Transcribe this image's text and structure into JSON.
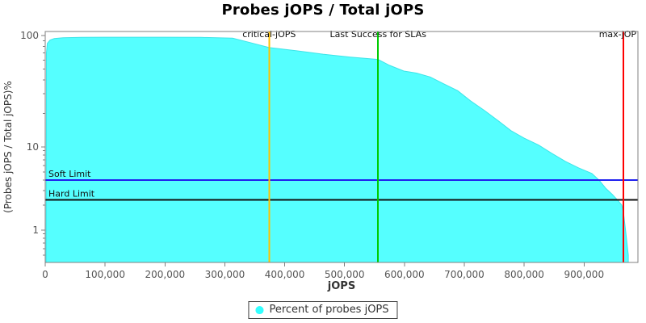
{
  "title": "Probes jOPS / Total jOPS",
  "chart_data": {
    "type": "area",
    "title": "Probes jOPS / Total jOPS",
    "xlabel": "jOPS",
    "ylabel": "(Probes jOPS / Total jOPS)%",
    "x_axis": {
      "min": 0,
      "max": 990000,
      "tick_values": [
        0,
        100000,
        200000,
        300000,
        400000,
        500000,
        600000,
        700000,
        800000,
        900000
      ],
      "tick_labels": [
        "0",
        "100,000",
        "200,000",
        "300,000",
        "400,000",
        "500,000",
        "600,000",
        "700,000",
        "800,000",
        "900,000"
      ]
    },
    "y_axis": {
      "scale": "log",
      "major_tick_values": [
        100,
        10,
        1
      ],
      "major_tick_labels": [
        "100",
        "10",
        "1"
      ],
      "minor_tick_values": [
        90,
        80,
        70,
        60,
        50,
        40,
        30,
        20,
        9,
        8,
        7,
        6,
        5,
        4,
        3,
        2,
        0.9,
        0.8,
        0.7,
        0.6,
        0.5
      ]
    },
    "grid": false,
    "legend_position": "bottom",
    "series": [
      {
        "name": "Percent of probes jOPS",
        "color": "#55FFFF",
        "edge_color": "#3DE4E8",
        "points": [
          [
            1500,
            0.5
          ],
          [
            2000,
            70
          ],
          [
            3500,
            85
          ],
          [
            8000,
            91
          ],
          [
            15000,
            94
          ],
          [
            30000,
            95.5
          ],
          [
            60000,
            96.2
          ],
          [
            120000,
            96.5
          ],
          [
            200000,
            96.5
          ],
          [
            260000,
            96.2
          ],
          [
            313000,
            94.7
          ],
          [
            340000,
            87
          ],
          [
            374000,
            78
          ],
          [
            420000,
            73
          ],
          [
            464000,
            68
          ],
          [
            510000,
            64
          ],
          [
            556000,
            61
          ],
          [
            575000,
            54
          ],
          [
            599000,
            48
          ],
          [
            620000,
            46
          ],
          [
            643000,
            42.5
          ],
          [
            665000,
            37
          ],
          [
            689000,
            32
          ],
          [
            710000,
            26
          ],
          [
            734000,
            21.2
          ],
          [
            757000,
            17.1
          ],
          [
            778000,
            14
          ],
          [
            800000,
            12
          ],
          [
            824000,
            10.4
          ],
          [
            846000,
            8.4
          ],
          [
            869000,
            6.7
          ],
          [
            891000,
            5.6
          ],
          [
            913000,
            4.8
          ],
          [
            925000,
            4.0
          ],
          [
            936000,
            3.2
          ],
          [
            947000,
            2.7
          ],
          [
            956000,
            2.3
          ],
          [
            963000,
            2.0
          ],
          [
            966000,
            1.6
          ],
          [
            970000,
            0.9
          ],
          [
            974000,
            0.5
          ]
        ]
      }
    ],
    "vertical_markers": [
      {
        "label": "critical-jOPS",
        "x": 374000,
        "color": "#FFC000"
      },
      {
        "label": "Last Success for SLAs",
        "x": 556000,
        "color": "#00CC00"
      },
      {
        "label": "max-jOP",
        "x": 966000,
        "color": "#FF0000"
      }
    ],
    "horizontal_markers": [
      {
        "label": "Soft Limit",
        "y": 4.0,
        "color": "#2020EE"
      },
      {
        "label": "Hard Limit",
        "y": 2.3,
        "color": "#101010"
      }
    ],
    "colors": {
      "plot_border": "#808080",
      "tick": "#808080",
      "tick_label": "#555555",
      "marker_label": "#111111",
      "axis_label": "#333333"
    }
  },
  "legend": {
    "label": "Percent of probes jOPS",
    "marker_color": "#33FFFF"
  }
}
